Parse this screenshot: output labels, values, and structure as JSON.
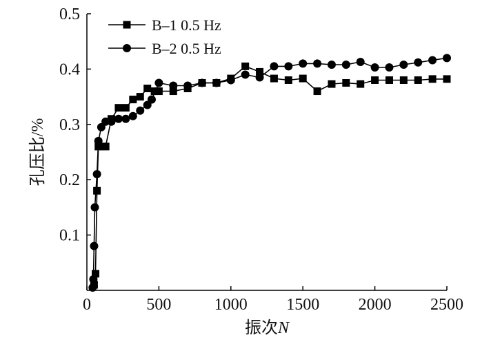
{
  "chart_data": {
    "type": "line",
    "title": "",
    "xlabel": "振次",
    "xlabel_italic": "N",
    "ylabel": "孔压比/%",
    "xlim": [
      0,
      2500
    ],
    "ylim": [
      0,
      0.5
    ],
    "x_ticks": [
      "0",
      "500",
      "1000",
      "1500",
      "2000",
      "2500"
    ],
    "y_ticks": [
      "0.1",
      "0.2",
      "0.3",
      "0.4",
      "0.5"
    ],
    "grid": false,
    "legend_position": "top-left",
    "series": [
      {
        "name": "B–1 0.5 Hz",
        "marker": "square",
        "color": "#000000",
        "x": [
          50,
          60,
          70,
          80,
          100,
          130,
          170,
          220,
          270,
          320,
          370,
          420,
          470,
          500,
          600,
          700,
          800,
          900,
          1000,
          1100,
          1200,
          1300,
          1400,
          1500,
          1600,
          1700,
          1800,
          1900,
          2000,
          2100,
          2200,
          2300,
          2400,
          2500
        ],
        "values": [
          0.01,
          0.03,
          0.18,
          0.26,
          0.26,
          0.26,
          0.31,
          0.33,
          0.33,
          0.345,
          0.35,
          0.365,
          0.36,
          0.36,
          0.36,
          0.365,
          0.375,
          0.375,
          0.383,
          0.405,
          0.395,
          0.383,
          0.38,
          0.383,
          0.36,
          0.373,
          0.375,
          0.373,
          0.38,
          0.38,
          0.38,
          0.38,
          0.382,
          0.382
        ]
      },
      {
        "name": "B–2 0.5 Hz",
        "marker": "circle",
        "color": "#000000",
        "x": [
          40,
          45,
          50,
          55,
          70,
          80,
          100,
          130,
          170,
          220,
          270,
          320,
          370,
          420,
          450,
          500,
          600,
          700,
          800,
          900,
          1000,
          1100,
          1200,
          1300,
          1400,
          1500,
          1600,
          1700,
          1800,
          1900,
          2000,
          2100,
          2200,
          2300,
          2400,
          2500
        ],
        "values": [
          0.005,
          0.02,
          0.08,
          0.15,
          0.21,
          0.27,
          0.295,
          0.305,
          0.305,
          0.31,
          0.31,
          0.315,
          0.325,
          0.335,
          0.345,
          0.375,
          0.37,
          0.37,
          0.375,
          0.375,
          0.38,
          0.39,
          0.385,
          0.405,
          0.405,
          0.41,
          0.41,
          0.408,
          0.408,
          0.413,
          0.403,
          0.403,
          0.408,
          0.412,
          0.416,
          0.42
        ]
      }
    ]
  }
}
